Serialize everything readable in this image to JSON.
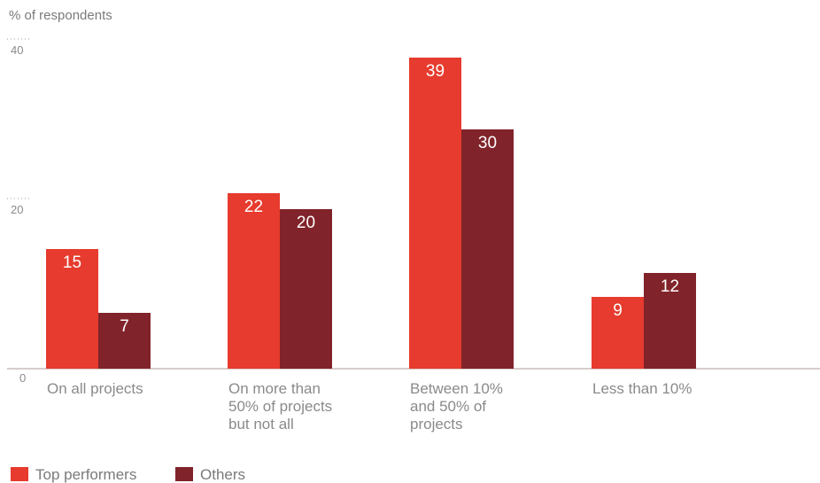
{
  "chart_data": {
    "type": "bar",
    "ylabel": "% of respondents",
    "ylim": [
      0,
      40
    ],
    "yticks": [
      0,
      20,
      40
    ],
    "categories": [
      [
        "On all projects"
      ],
      [
        "On more than",
        "50% of projects",
        "but not all"
      ],
      [
        "Between 10%",
        "and 50% of",
        "projects"
      ],
      [
        "Less than 10%"
      ]
    ],
    "series": [
      {
        "name": "Top performers",
        "color": "#e63b2e",
        "values": [
          15,
          22,
          39,
          9
        ]
      },
      {
        "name": "Others",
        "color": "#81232a",
        "values": [
          7,
          20,
          30,
          12
        ]
      }
    ],
    "legend_position": "bottom-left",
    "grid": false
  }
}
